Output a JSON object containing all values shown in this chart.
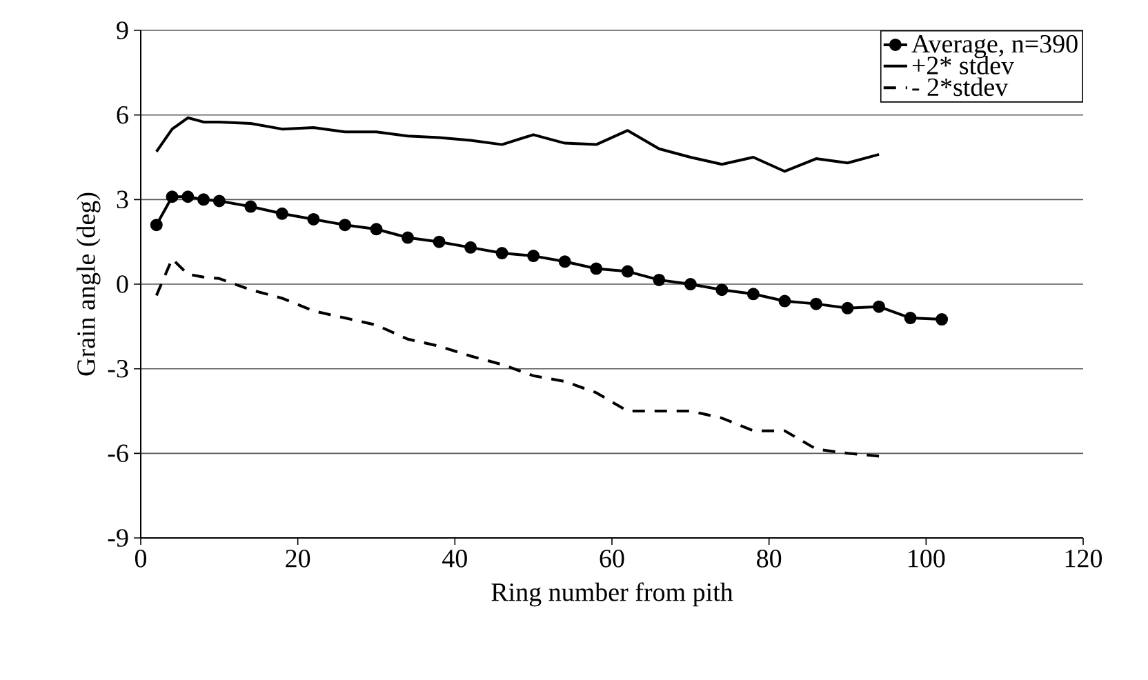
{
  "chart_data": {
    "type": "line",
    "xlabel": "Ring number from pith",
    "ylabel": "Grain angle (deg)",
    "xlim": [
      0,
      120
    ],
    "xticks": [
      0,
      20,
      40,
      60,
      80,
      100,
      120
    ],
    "ylim": [
      -9,
      9
    ],
    "yticks": [
      -9,
      -6,
      -3,
      0,
      3,
      6,
      9
    ],
    "grid": "y",
    "legend": "top right",
    "series": [
      {
        "name": "Average, n=390",
        "color": "#000000",
        "marker": "circle",
        "line_style": "solid",
        "x": [
          2,
          4,
          6,
          8,
          10,
          14,
          18,
          22,
          26,
          30,
          34,
          38,
          42,
          46,
          50,
          54,
          58,
          62,
          66,
          70,
          74,
          78,
          82,
          86,
          90,
          94,
          98,
          102
        ],
        "values": [
          2.1,
          3.1,
          3.1,
          3.0,
          2.95,
          2.75,
          2.5,
          2.3,
          2.1,
          1.95,
          1.65,
          1.5,
          1.3,
          1.1,
          1.0,
          0.8,
          0.55,
          0.45,
          0.15,
          0.0,
          -0.2,
          -0.35,
          -0.6,
          -0.7,
          -0.85,
          -0.8,
          -1.2,
          -1.25
        ]
      },
      {
        "name": "+2* stdev",
        "color": "#000000",
        "marker": "none",
        "line_style": "solid",
        "x": [
          2,
          4,
          6,
          8,
          10,
          14,
          18,
          22,
          26,
          30,
          34,
          38,
          42,
          46,
          50,
          54,
          58,
          62,
          66,
          70,
          74,
          78,
          82,
          86,
          90,
          94
        ],
        "values": [
          4.7,
          5.5,
          5.9,
          5.75,
          5.75,
          5.7,
          5.5,
          5.55,
          5.4,
          5.4,
          5.25,
          5.2,
          5.1,
          4.95,
          5.3,
          5.0,
          4.95,
          5.45,
          4.8,
          4.5,
          4.25,
          4.5,
          4.0,
          4.45,
          4.3,
          4.6
        ]
      },
      {
        "name": "- 2*stdev",
        "color": "#000000",
        "marker": "none",
        "line_style": "dashed",
        "x": [
          2,
          4,
          6,
          8,
          10,
          14,
          18,
          22,
          26,
          30,
          34,
          38,
          42,
          46,
          50,
          54,
          58,
          62,
          66,
          70,
          74,
          78,
          82,
          86,
          90,
          94
        ],
        "values": [
          -0.4,
          0.9,
          0.35,
          0.25,
          0.2,
          -0.2,
          -0.5,
          -0.95,
          -1.2,
          -1.45,
          -1.95,
          -2.2,
          -2.55,
          -2.85,
          -3.25,
          -3.45,
          -3.85,
          -4.5,
          -4.5,
          -4.5,
          -4.75,
          -5.2,
          -5.2,
          -5.85,
          -6.0,
          -6.1
        ]
      }
    ]
  }
}
